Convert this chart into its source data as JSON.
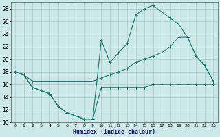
{
  "xlabel": "Humidex (Indice chaleur)",
  "bg_color": "#cce8e8",
  "grid_color": "#aacccc",
  "line_color": "#1a7a6e",
  "xlim": [
    -0.5,
    23.5
  ],
  "ylim": [
    10,
    29
  ],
  "xticks": [
    0,
    1,
    2,
    3,
    4,
    5,
    6,
    7,
    8,
    9,
    10,
    11,
    12,
    13,
    14,
    15,
    16,
    17,
    18,
    19,
    20,
    21,
    22,
    23
  ],
  "yticks": [
    10,
    12,
    14,
    16,
    18,
    20,
    22,
    24,
    26,
    28
  ],
  "line_peaked_x": [
    0,
    1,
    2,
    3,
    4,
    5,
    6,
    7,
    8,
    9,
    10,
    11,
    12,
    13,
    14,
    15,
    16,
    17,
    18,
    19,
    20,
    21,
    22,
    23
  ],
  "line_peaked_y": [
    18,
    17.5,
    15.5,
    15,
    14.5,
    12.5,
    11.5,
    11,
    10.5,
    10.5,
    23,
    19.5,
    21.0,
    22.5,
    27.0,
    28.0,
    28.5,
    27.5,
    26.5,
    25.5,
    23.5,
    20.5,
    19.0,
    16.5
  ],
  "line_bottom_x": [
    0,
    1,
    2,
    3,
    4,
    5,
    6,
    7,
    8,
    9,
    10,
    11,
    12,
    13,
    14,
    15,
    16,
    17,
    18,
    19,
    20,
    21,
    22,
    23
  ],
  "line_bottom_y": [
    18,
    17.5,
    15.5,
    15,
    14.5,
    12.5,
    11.5,
    11,
    10.5,
    10.5,
    15.5,
    15.5,
    15.5,
    15.5,
    15.5,
    15.5,
    16.0,
    16.0,
    16.0,
    16.0,
    16.0,
    16.0,
    16.0,
    16.0
  ],
  "line_diag_x": [
    0,
    1,
    2,
    9,
    10,
    11,
    12,
    13,
    14,
    15,
    16,
    17,
    18,
    19,
    20,
    21,
    22,
    23
  ],
  "line_diag_y": [
    18,
    17.5,
    16.5,
    16.5,
    17.0,
    17.5,
    18.0,
    18.5,
    19.5,
    20.0,
    20.5,
    21.0,
    22.0,
    23.5,
    23.5,
    20.5,
    19.0,
    16.5
  ]
}
